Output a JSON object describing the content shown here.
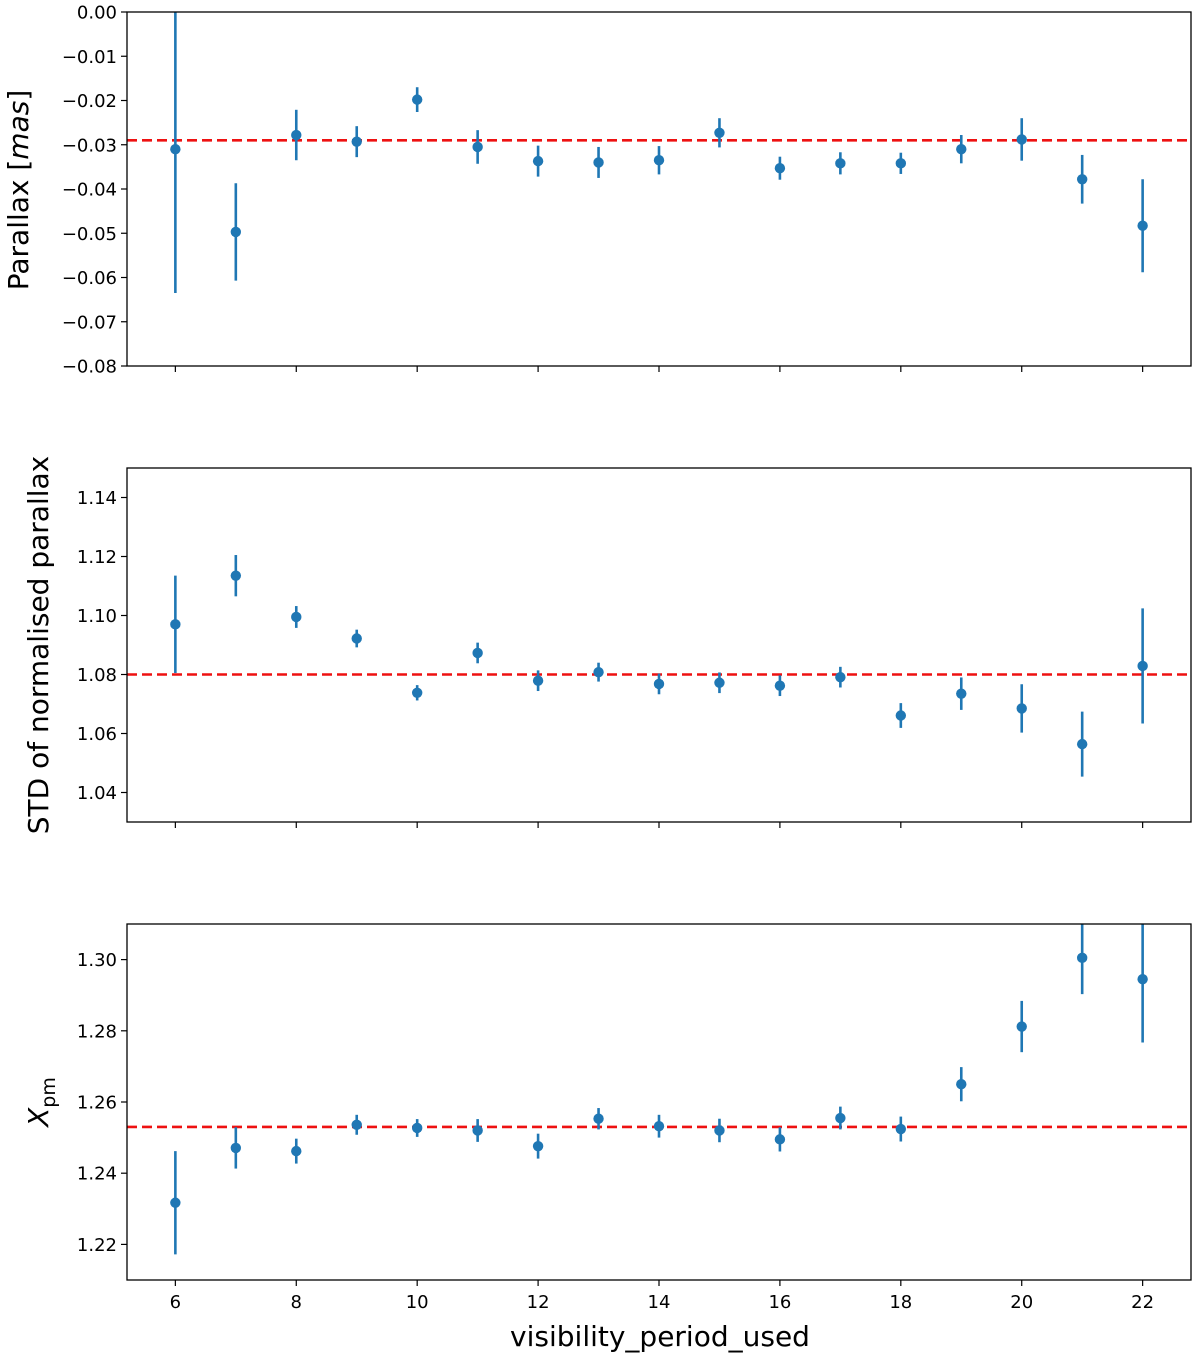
{
  "chart_data": [
    {
      "type": "scatter",
      "error_bars": true,
      "title": "",
      "xlabel": "",
      "ylabel": "Parallax [mas]",
      "ylabel_parts": {
        "plain": "Parallax [",
        "italic": "mas",
        "close": "]"
      },
      "x": [
        6,
        7,
        8,
        9,
        10,
        11,
        12,
        13,
        14,
        15,
        16,
        17,
        18,
        19,
        20,
        21,
        22
      ],
      "y": [
        -0.031,
        -0.0497,
        -0.0278,
        -0.0293,
        -0.0198,
        -0.0305,
        -0.0337,
        -0.034,
        -0.0335,
        -0.0273,
        -0.0353,
        -0.0342,
        -0.0342,
        -0.031,
        -0.0288,
        -0.0378,
        -0.0483
      ],
      "yerr": [
        0.0325,
        0.011,
        0.0057,
        0.0035,
        0.0028,
        0.0038,
        0.0035,
        0.0035,
        0.0032,
        0.0033,
        0.0026,
        0.0025,
        0.0024,
        0.0032,
        0.0048,
        0.0055,
        0.0105
      ],
      "reference_line": -0.029,
      "xlim": [
        5.2,
        22.8
      ],
      "ylim": [
        -0.08,
        0.0
      ],
      "yticks": [
        0.0,
        -0.01,
        -0.02,
        -0.03,
        -0.04,
        -0.05,
        -0.06,
        -0.07,
        -0.08
      ],
      "ytick_labels": [
        "0.00",
        "−0.01",
        "−0.02",
        "−0.03",
        "−0.04",
        "−0.05",
        "−0.06",
        "−0.07",
        "−0.08"
      ]
    },
    {
      "type": "scatter",
      "error_bars": true,
      "title": "",
      "xlabel": "",
      "ylabel": "STD of normalised parallax",
      "x": [
        6,
        7,
        8,
        9,
        10,
        11,
        12,
        13,
        14,
        15,
        16,
        17,
        18,
        19,
        20,
        21,
        22
      ],
      "y": [
        1.097,
        1.1135,
        1.0995,
        1.0922,
        1.0738,
        1.0873,
        1.0779,
        1.0808,
        1.0768,
        1.0772,
        1.0762,
        1.0791,
        1.0661,
        1.0735,
        1.0685,
        1.0564,
        1.0829
      ],
      "yerr": [
        0.0165,
        0.007,
        0.0037,
        0.003,
        0.0026,
        0.0035,
        0.0035,
        0.0032,
        0.0035,
        0.0035,
        0.0035,
        0.0035,
        0.0042,
        0.0055,
        0.0082,
        0.011,
        0.0195
      ],
      "reference_line": 1.08,
      "xlim": [
        5.2,
        22.8
      ],
      "ylim": [
        1.03,
        1.15
      ],
      "yticks": [
        1.14,
        1.12,
        1.1,
        1.08,
        1.06,
        1.04
      ],
      "ytick_labels": [
        "1.14",
        "1.12",
        "1.10",
        "1.08",
        "1.06",
        "1.04"
      ]
    },
    {
      "type": "scatter",
      "error_bars": true,
      "title": "",
      "xlabel": "visibility_period_used",
      "ylabel": "Xpm",
      "ylabel_parts": {
        "base": "X",
        "sub": "pm"
      },
      "x": [
        6,
        7,
        8,
        9,
        10,
        11,
        12,
        13,
        14,
        15,
        16,
        17,
        18,
        19,
        20,
        21,
        22
      ],
      "y": [
        1.2317,
        1.2471,
        1.2462,
        1.2536,
        1.2527,
        1.252,
        1.2476,
        1.2553,
        1.2532,
        1.252,
        1.2495,
        1.2555,
        1.2524,
        1.265,
        1.2812,
        1.3005,
        1.2945
      ],
      "yerr": [
        0.0145,
        0.0058,
        0.0035,
        0.0028,
        0.0025,
        0.0032,
        0.0035,
        0.003,
        0.0032,
        0.0033,
        0.0034,
        0.0032,
        0.0035,
        0.0048,
        0.0072,
        0.0102,
        0.0178
      ],
      "reference_line": 1.253,
      "xlim": [
        5.2,
        22.8
      ],
      "ylim": [
        1.21,
        1.31
      ],
      "xticks": [
        6,
        8,
        10,
        12,
        14,
        16,
        18,
        20,
        22
      ],
      "xtick_labels": [
        "6",
        "8",
        "10",
        "12",
        "14",
        "16",
        "18",
        "20",
        "22"
      ],
      "yticks": [
        1.3,
        1.28,
        1.26,
        1.24,
        1.22
      ],
      "ytick_labels": [
        "1.30",
        "1.28",
        "1.26",
        "1.24",
        "1.22"
      ]
    }
  ],
  "colors": {
    "marker": "#1f77b4",
    "reference_line": "#ee1111",
    "axes": "#000000"
  }
}
